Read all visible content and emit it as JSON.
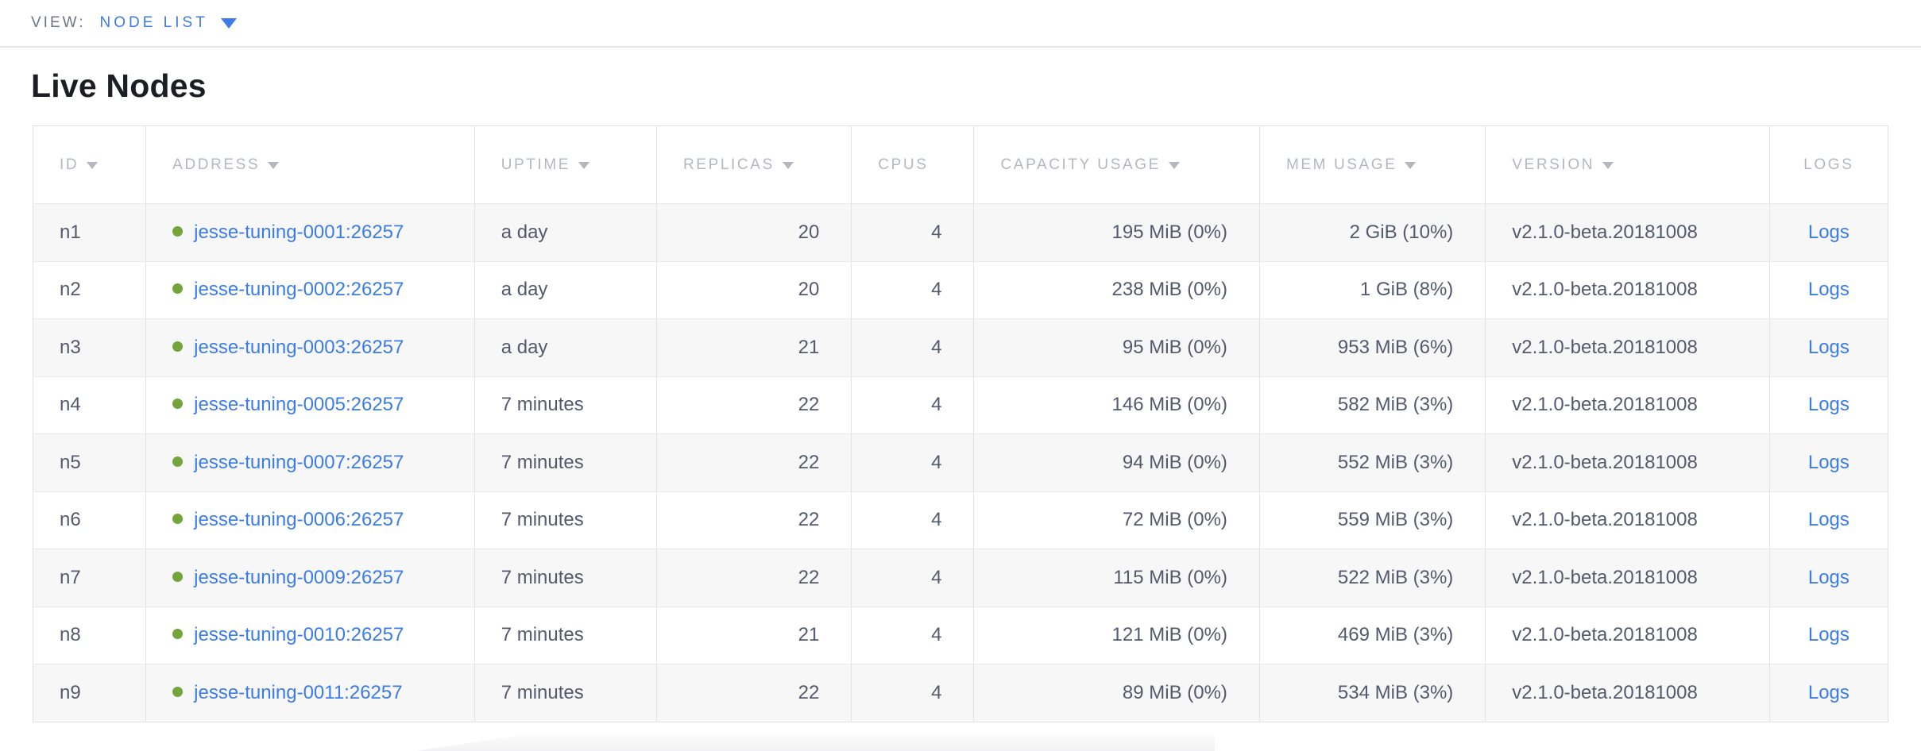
{
  "view_bar": {
    "label": "VIEW:",
    "selected": "NODE LIST"
  },
  "page": {
    "title": "Live Nodes"
  },
  "table": {
    "columns": [
      {
        "label": "ID",
        "sortable": true,
        "align": "left"
      },
      {
        "label": "ADDRESS",
        "sortable": true,
        "align": "left"
      },
      {
        "label": "UPTIME",
        "sortable": true,
        "align": "left"
      },
      {
        "label": "REPLICAS",
        "sortable": true,
        "align": "right"
      },
      {
        "label": "CPUS",
        "sortable": false,
        "align": "right"
      },
      {
        "label": "CAPACITY USAGE",
        "sortable": true,
        "align": "right"
      },
      {
        "label": "MEM USAGE",
        "sortable": true,
        "align": "right"
      },
      {
        "label": "VERSION",
        "sortable": true,
        "align": "left"
      },
      {
        "label": "LOGS",
        "sortable": false,
        "align": "center"
      }
    ],
    "rows": [
      {
        "id": "n1",
        "address": "jesse-tuning-0001:26257",
        "uptime": "a day",
        "replicas": "20",
        "cpus": "4",
        "capacity": "195 MiB (0%)",
        "mem": "2 GiB (10%)",
        "version": "v2.1.0-beta.20181008",
        "logs": "Logs"
      },
      {
        "id": "n2",
        "address": "jesse-tuning-0002:26257",
        "uptime": "a day",
        "replicas": "20",
        "cpus": "4",
        "capacity": "238 MiB (0%)",
        "mem": "1 GiB (8%)",
        "version": "v2.1.0-beta.20181008",
        "logs": "Logs"
      },
      {
        "id": "n3",
        "address": "jesse-tuning-0003:26257",
        "uptime": "a day",
        "replicas": "21",
        "cpus": "4",
        "capacity": "95 MiB (0%)",
        "mem": "953 MiB (6%)",
        "version": "v2.1.0-beta.20181008",
        "logs": "Logs"
      },
      {
        "id": "n4",
        "address": "jesse-tuning-0005:26257",
        "uptime": "7 minutes",
        "replicas": "22",
        "cpus": "4",
        "capacity": "146 MiB (0%)",
        "mem": "582 MiB (3%)",
        "version": "v2.1.0-beta.20181008",
        "logs": "Logs"
      },
      {
        "id": "n5",
        "address": "jesse-tuning-0007:26257",
        "uptime": "7 minutes",
        "replicas": "22",
        "cpus": "4",
        "capacity": "94 MiB (0%)",
        "mem": "552 MiB (3%)",
        "version": "v2.1.0-beta.20181008",
        "logs": "Logs"
      },
      {
        "id": "n6",
        "address": "jesse-tuning-0006:26257",
        "uptime": "7 minutes",
        "replicas": "22",
        "cpus": "4",
        "capacity": "72 MiB (0%)",
        "mem": "559 MiB (3%)",
        "version": "v2.1.0-beta.20181008",
        "logs": "Logs"
      },
      {
        "id": "n7",
        "address": "jesse-tuning-0009:26257",
        "uptime": "7 minutes",
        "replicas": "22",
        "cpus": "4",
        "capacity": "115 MiB (0%)",
        "mem": "522 MiB (3%)",
        "version": "v2.1.0-beta.20181008",
        "logs": "Logs"
      },
      {
        "id": "n8",
        "address": "jesse-tuning-0010:26257",
        "uptime": "7 minutes",
        "replicas": "21",
        "cpus": "4",
        "capacity": "121 MiB (0%)",
        "mem": "469 MiB (3%)",
        "version": "v2.1.0-beta.20181008",
        "logs": "Logs"
      },
      {
        "id": "n9",
        "address": "jesse-tuning-0011:26257",
        "uptime": "7 minutes",
        "replicas": "22",
        "cpus": "4",
        "capacity": "89 MiB (0%)",
        "mem": "534 MiB (3%)",
        "version": "v2.1.0-beta.20181008",
        "logs": "Logs"
      }
    ]
  },
  "colors": {
    "link_blue": "#3b7ce8",
    "live_dot_green": "#74a53c",
    "stripe_gray": "#f7f7f7",
    "border_gray": "#e0e0e1",
    "header_text_gray": "#b4b8be",
    "cell_text": "#525a6c"
  }
}
